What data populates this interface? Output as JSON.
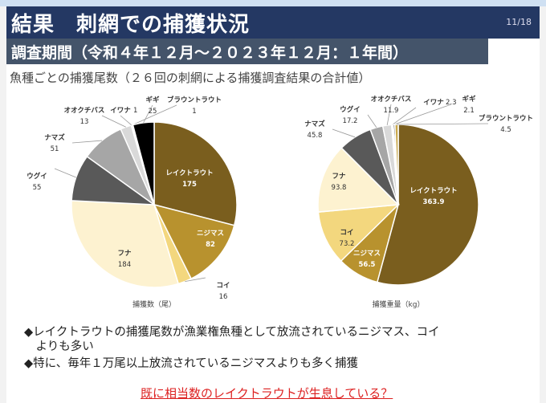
{
  "header": {
    "title": "結果　刺網での捕獲状況",
    "page": "11/18",
    "subtitle": "調査期間（令和４年１２月～２０２３年１２月：１年間）"
  },
  "caption": "魚種ごとの捕獲尾数（２６回の刺網による捕獲調査結果の合計値）",
  "chart_data": [
    {
      "type": "pie",
      "title": "捕獲数（尾）",
      "labels": [
        "レイクトラウト",
        "ニジマス",
        "コイ",
        "フナ",
        "ウグイ",
        "ナマズ",
        "オオクチバス",
        "イワナ",
        "ブラウントラウト",
        "ギギ"
      ],
      "values": [
        175,
        82,
        16,
        184,
        55,
        51,
        13,
        1,
        1,
        25
      ],
      "colors": [
        "#7a5e1e",
        "#b8922e",
        "#f3d77e",
        "#fdf2d0",
        "#595959",
        "#a6a6a6",
        "#d9d9d9",
        "#ffffff",
        "#eeeeee",
        "#000000"
      ]
    },
    {
      "type": "pie",
      "title": "捕獲重量（kg）",
      "labels": [
        "レイクトラウト",
        "ニジマス",
        "コイ",
        "フナ",
        "ナマズ",
        "ウグイ",
        "オオクチバス",
        "イワナ",
        "ギギ",
        "ブラウントラウト"
      ],
      "values": [
        363.9,
        56.5,
        73.2,
        93.8,
        45.8,
        17.2,
        11.9,
        2.3,
        2.1,
        4.5
      ],
      "colors": [
        "#7a5e1e",
        "#b8922e",
        "#f3d77e",
        "#fdf2d0",
        "#595959",
        "#a6a6a6",
        "#d9d9d9",
        "#ffffff",
        "#000000",
        "#c9a84c"
      ]
    }
  ],
  "bullets": [
    "◆レイクトラウトの捕獲尾数が漁業権魚種として放流されているニジマス、コイ",
    "　よりも多い",
    "◆特に、毎年１万尾以上放流されているニジマスよりも多く捕獲"
  ],
  "conclusion": "既に相当数のレイクトラウトが生息している？"
}
